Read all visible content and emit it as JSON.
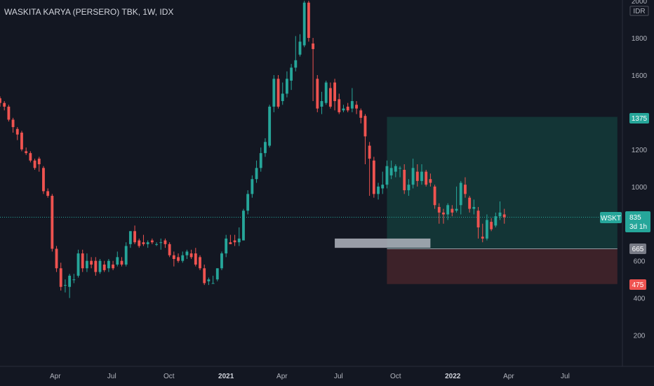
{
  "header": {
    "title": "WASKITA KARYA (PERSERO) TBK, 1W, IDX"
  },
  "price_axis": {
    "currency_label": "IDR"
  },
  "badges": {
    "symbol": "WSKT",
    "last_price": "835",
    "time_left": "3d 1h",
    "target": "1375",
    "entry": "665",
    "stop": "475"
  },
  "colors": {
    "background": "#131722",
    "up": "#26a69a",
    "down": "#ef5350",
    "profit_zone": "#133536",
    "loss_zone": "#3d2229",
    "support_box": "#b2b5be",
    "last_price_line": "#26a69a"
  },
  "chart_data": {
    "type": "candlestick",
    "title": "WASKITA KARYA (PERSERO) TBK, 1W, IDX",
    "interval": "1W",
    "ylim": [
      0,
      2000
    ],
    "y_ticks": [
      200,
      400,
      600,
      800,
      1000,
      1200,
      1400,
      1600,
      1800,
      2000
    ],
    "y_tick_labels": [
      "200",
      "400",
      "600",
      "",
      "1000",
      "1200",
      "",
      "1600",
      "1800",
      "2000"
    ],
    "x_ticks": [
      {
        "label": "Apr",
        "date": "2020-04-01"
      },
      {
        "label": "Jul",
        "date": "2020-07-01"
      },
      {
        "label": "Oct",
        "date": "2020-10-01"
      },
      {
        "label": "2021",
        "date": "2021-01-01",
        "bold": true
      },
      {
        "label": "Apr",
        "date": "2021-04-01"
      },
      {
        "label": "Jul",
        "date": "2021-07-01"
      },
      {
        "label": "Oct",
        "date": "2021-10-01"
      },
      {
        "label": "2022",
        "date": "2022-01-01",
        "bold": true
      },
      {
        "label": "Apr",
        "date": "2022-04-01"
      },
      {
        "label": "Jul",
        "date": "2022-07-01"
      }
    ],
    "x_range": [
      "2020-01-03",
      "2022-09-30"
    ],
    "first_candle_date": "2020-01-03",
    "candles": [
      [
        1475,
        1450,
        1485,
        1430
      ],
      [
        1450,
        1430,
        1460,
        1410
      ],
      [
        1430,
        1360,
        1440,
        1350
      ],
      [
        1360,
        1320,
        1370,
        1290
      ],
      [
        1310,
        1280,
        1320,
        1250
      ],
      [
        1290,
        1200,
        1300,
        1190
      ],
      [
        1190,
        1180,
        1210,
        1170
      ],
      [
        1180,
        1140,
        1190,
        1130
      ],
      [
        1140,
        1100,
        1150,
        1090
      ],
      [
        1150,
        1120,
        1160,
        1080
      ],
      [
        1100,
        975,
        1110,
        960
      ],
      [
        975,
        950,
        990,
        940
      ],
      [
        950,
        665,
        960,
        650
      ],
      [
        665,
        560,
        680,
        540
      ],
      [
        560,
        460,
        590,
        440
      ],
      [
        470,
        470,
        500,
        430
      ],
      [
        460,
        520,
        530,
        400
      ],
      [
        500,
        500,
        530,
        480
      ],
      [
        520,
        640,
        660,
        510
      ],
      [
        640,
        560,
        660,
        540
      ],
      [
        560,
        600,
        640,
        540
      ],
      [
        600,
        580,
        620,
        560
      ],
      [
        600,
        540,
        620,
        520
      ],
      [
        540,
        600,
        610,
        530
      ],
      [
        580,
        550,
        600,
        540
      ],
      [
        560,
        600,
        610,
        540
      ],
      [
        580,
        560,
        600,
        550
      ],
      [
        580,
        620,
        650,
        570
      ],
      [
        600,
        580,
        620,
        570
      ],
      [
        580,
        680,
        700,
        570
      ],
      [
        690,
        760,
        760,
        670
      ],
      [
        760,
        700,
        790,
        690
      ],
      [
        710,
        680,
        720,
        670
      ],
      [
        700,
        690,
        740,
        680
      ],
      [
        690,
        700,
        710,
        670
      ],
      [
        710,
        700,
        720,
        690
      ],
      [
        690,
        690,
        700,
        680
      ],
      [
        700,
        700,
        720,
        660
      ],
      [
        710,
        690,
        720,
        670
      ],
      [
        690,
        630,
        700,
        620
      ],
      [
        630,
        610,
        650,
        570
      ],
      [
        620,
        600,
        640,
        590
      ],
      [
        600,
        630,
        650,
        590
      ],
      [
        630,
        650,
        660,
        610
      ],
      [
        640,
        620,
        660,
        610
      ],
      [
        640,
        580,
        670,
        570
      ],
      [
        620,
        560,
        630,
        550
      ],
      [
        560,
        480,
        580,
        470
      ],
      [
        490,
        500,
        510,
        470
      ],
      [
        480,
        480,
        520,
        480
      ],
      [
        500,
        560,
        560,
        490
      ],
      [
        560,
        640,
        650,
        550
      ],
      [
        640,
        720,
        740,
        620
      ],
      [
        700,
        690,
        740,
        690
      ],
      [
        710,
        700,
        740,
        680
      ],
      [
        700,
        720,
        780,
        680
      ],
      [
        710,
        870,
        880,
        710
      ],
      [
        870,
        960,
        980,
        850
      ],
      [
        960,
        1040,
        1060,
        940
      ],
      [
        1040,
        1100,
        1140,
        1020
      ],
      [
        1100,
        1180,
        1210,
        1080
      ],
      [
        1180,
        1240,
        1260,
        1160
      ],
      [
        1220,
        1430,
        1440,
        1210
      ],
      [
        1430,
        1580,
        1600,
        1400
      ],
      [
        1580,
        1430,
        1600,
        1420
      ],
      [
        1460,
        1500,
        1560,
        1440
      ],
      [
        1500,
        1580,
        1620,
        1480
      ],
      [
        1570,
        1640,
        1660,
        1520
      ],
      [
        1640,
        1680,
        1810,
        1620
      ],
      [
        1710,
        1780,
        1820,
        1700
      ],
      [
        1760,
        1990,
        2000,
        1750
      ],
      [
        1990,
        1800,
        2000,
        1780
      ],
      [
        1770,
        1740,
        1800,
        1460
      ],
      [
        1580,
        1420,
        1600,
        1400
      ],
      [
        1430,
        1460,
        1510,
        1390
      ],
      [
        1450,
        1560,
        1570,
        1440
      ],
      [
        1530,
        1430,
        1560,
        1420
      ],
      [
        1560,
        1460,
        1580,
        1410
      ],
      [
        1470,
        1400,
        1500,
        1390
      ],
      [
        1410,
        1420,
        1440,
        1400
      ],
      [
        1430,
        1410,
        1450,
        1400
      ],
      [
        1420,
        1460,
        1530,
        1400
      ],
      [
        1440,
        1420,
        1460,
        1390
      ],
      [
        1410,
        1370,
        1420,
        1340
      ],
      [
        1380,
        1270,
        1390,
        1120
      ],
      [
        1220,
        1150,
        1240,
        950
      ],
      [
        1140,
        960,
        1160,
        940
      ],
      [
        960,
        1000,
        1020,
        930
      ],
      [
        990,
        1010,
        1080,
        960
      ],
      [
        1010,
        1110,
        1140,
        990
      ],
      [
        1060,
        1100,
        1140,
        1040
      ],
      [
        1080,
        1110,
        1120,
        1050
      ],
      [
        1100,
        1100,
        1110,
        1050
      ],
      [
        1090,
        980,
        1120,
        960
      ],
      [
        980,
        1010,
        1040,
        950
      ],
      [
        1010,
        1100,
        1150,
        990
      ],
      [
        1080,
        1030,
        1120,
        1000
      ],
      [
        1030,
        1080,
        1120,
        1010
      ],
      [
        1080,
        1010,
        1090,
        1000
      ],
      [
        1040,
        1020,
        1070,
        1000
      ],
      [
        1000,
        900,
        1010,
        880
      ],
      [
        890,
        860,
        910,
        800
      ],
      [
        860,
        850,
        880,
        800
      ],
      [
        850,
        900,
        910,
        820
      ],
      [
        880,
        860,
        900,
        840
      ],
      [
        870,
        880,
        1000,
        860
      ],
      [
        900,
        1020,
        1030,
        850
      ],
      [
        1010,
        960,
        1050,
        940
      ],
      [
        940,
        880,
        950,
        860
      ],
      [
        880,
        890,
        930,
        850
      ],
      [
        870,
        780,
        890,
        720
      ],
      [
        730,
        720,
        800,
        700
      ],
      [
        720,
        820,
        850,
        710
      ],
      [
        810,
        770,
        830,
        760
      ],
      [
        790,
        840,
        860,
        780
      ],
      [
        840,
        860,
        920,
        820
      ],
      [
        850,
        835,
        880,
        800
      ]
    ],
    "annotations": [
      {
        "type": "long_position",
        "entry": 665,
        "target": 1375,
        "stop": 475,
        "start": "2021-09-17",
        "end": "2022-09-23"
      },
      {
        "type": "support_box",
        "low": 670,
        "high": 720,
        "start": "2021-06-25",
        "end": "2021-11-26"
      }
    ]
  }
}
